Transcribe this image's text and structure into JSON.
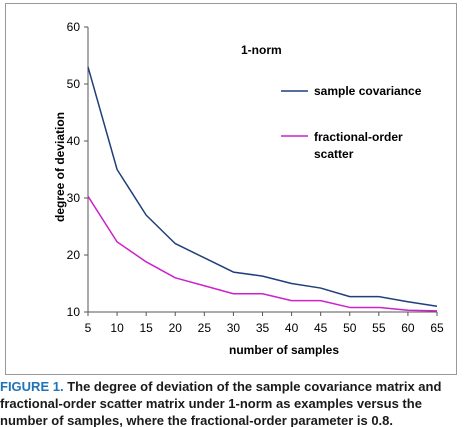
{
  "chart_data": {
    "type": "line",
    "title": "1-norm",
    "xlabel": "number of samples",
    "ylabel": "degree of deviation",
    "x": [
      5,
      10,
      15,
      20,
      25,
      30,
      35,
      40,
      45,
      50,
      55,
      60,
      65
    ],
    "xticks": [
      "5",
      "10",
      "15",
      "20",
      "25",
      "30",
      "35",
      "40",
      "45",
      "50",
      "55",
      "60",
      "65"
    ],
    "yticks": [
      "10",
      "20",
      "30",
      "40",
      "50",
      "60"
    ],
    "xlim": [
      5,
      65
    ],
    "ylim": [
      10,
      60
    ],
    "grid": false,
    "legend_position": "right",
    "series": [
      {
        "name": "sample covariance",
        "color": "#1f3f7a",
        "values": [
          53,
          35,
          27,
          22,
          19.5,
          17,
          16.3,
          15,
          14.2,
          12.7,
          12.7,
          11.8,
          11
        ]
      },
      {
        "name": "fractional-order scatter",
        "color": "#cc22cc",
        "values": [
          30.3,
          22.3,
          18.8,
          16,
          14.6,
          13.2,
          13.2,
          12,
          12,
          10.8,
          10.8,
          10.3,
          10.2
        ]
      }
    ]
  },
  "caption": {
    "figure_label": "FIGURE 1.",
    "lines": [
      "The degree of deviation of the sample covariance matrix and",
      "fractional-order scatter matrix under 1-norm as examples versus the",
      "number of samples, where the fractional-order parameter is 0.8."
    ]
  }
}
